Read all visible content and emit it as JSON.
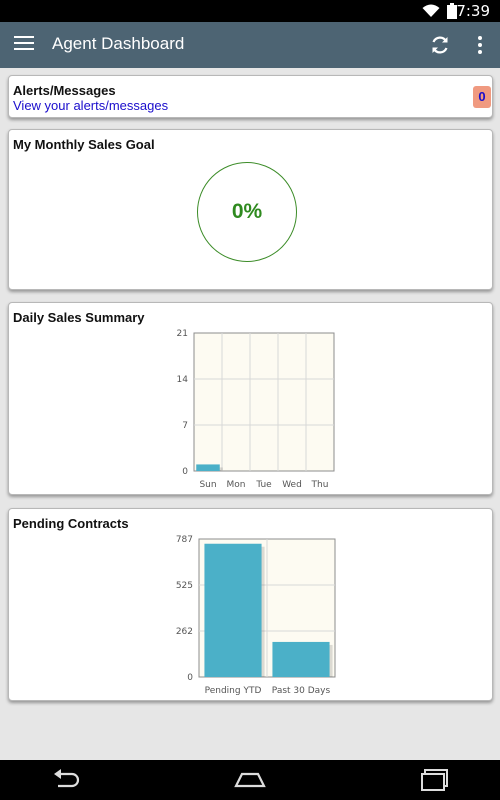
{
  "status_bar": {
    "time": "7:39"
  },
  "app_bar": {
    "title": "Agent Dashboard"
  },
  "alerts": {
    "title": "Alerts/Messages",
    "link": "View your alerts/messages",
    "count": "0"
  },
  "goal": {
    "title": "My Monthly Sales Goal",
    "percent": "0%",
    "fraction": 0
  },
  "colors": {
    "app_bar": "#4d6473",
    "bar": "#4bb0c8",
    "goal_green": "#2f8a1f",
    "badge": "#f09a80",
    "link": "#1a0dcc"
  },
  "icons": {
    "menu": "menu-icon",
    "refresh": "refresh-icon",
    "more": "more-vert-icon",
    "back": "back-icon",
    "home": "home-icon",
    "recents": "recents-icon"
  },
  "chart_data": [
    {
      "type": "bar",
      "title": "Daily Sales Summary",
      "categories": [
        "Sun",
        "Mon",
        "Tue",
        "Wed",
        "Thu"
      ],
      "values": [
        1,
        0,
        0,
        0,
        0
      ],
      "yticks": [
        "0",
        "7",
        "14",
        "21"
      ],
      "ylim": [
        0,
        21
      ],
      "grid": true
    },
    {
      "type": "bar",
      "title": "Pending Contracts",
      "categories": [
        "Pending YTD",
        "Past 30 Days"
      ],
      "values": [
        760,
        200
      ],
      "yticks": [
        "0",
        "262",
        "525",
        "787"
      ],
      "ylim": [
        0,
        787
      ],
      "grid": true
    }
  ]
}
